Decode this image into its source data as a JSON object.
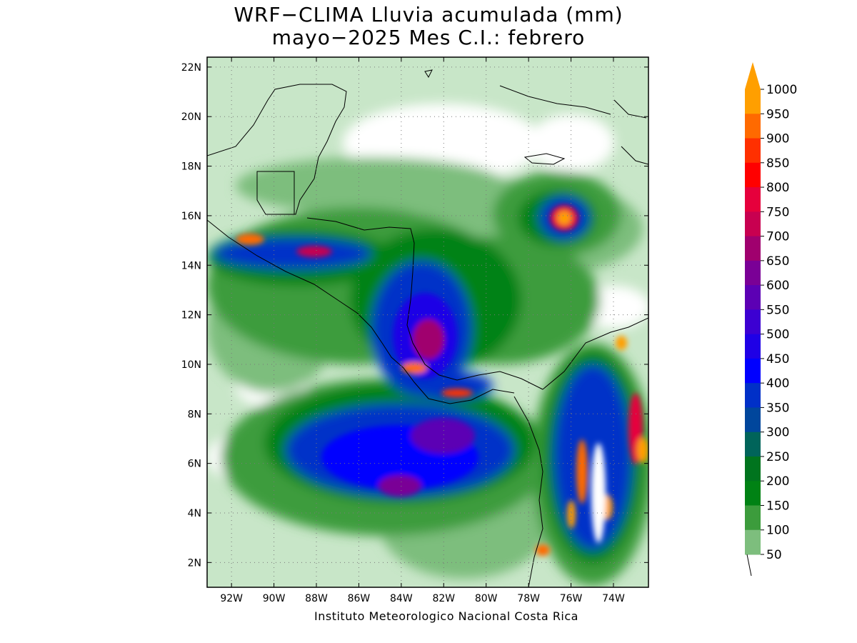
{
  "title": {
    "line1": "WRF−CLIMA Lluvia acumulada (mm)",
    "line2": "mayo−2025 Mes C.I.: febrero"
  },
  "credit": "Instituto Meteorologico Nacional Costa Rica",
  "map": {
    "lon_range": [
      -93.15,
      -72.35
    ],
    "lat_range": [
      1.0,
      22.4
    ],
    "lon_ticks": [
      "92W",
      "90W",
      "88W",
      "86W",
      "84W",
      "82W",
      "80W",
      "78W",
      "76W",
      "74W"
    ],
    "lat_ticks": [
      "22N",
      "20N",
      "18N",
      "16N",
      "14N",
      "12N",
      "10N",
      "8N",
      "6N",
      "4N",
      "2N"
    ],
    "grid": "dotted"
  },
  "colorbar": {
    "unit": "mm",
    "labels": [
      "1000",
      "950",
      "900",
      "850",
      "800",
      "750",
      "700",
      "650",
      "600",
      "550",
      "500",
      "450",
      "400",
      "350",
      "300",
      "250",
      "200",
      "150",
      "100",
      "50"
    ],
    "colors": [
      "#ff9f00",
      "#ff6a00",
      "#ff3000",
      "#ff0000",
      "#e6003c",
      "#c80050",
      "#a0006e",
      "#7a0096",
      "#5c00b4",
      "#3c00d2",
      "#1f00e6",
      "#0000ff",
      "#0030c8",
      "#00469c",
      "#00645a",
      "#00741e",
      "#008214",
      "#3c9c3c",
      "#7dbe7d",
      "#c8e6c8"
    ],
    "extend": "max"
  }
}
